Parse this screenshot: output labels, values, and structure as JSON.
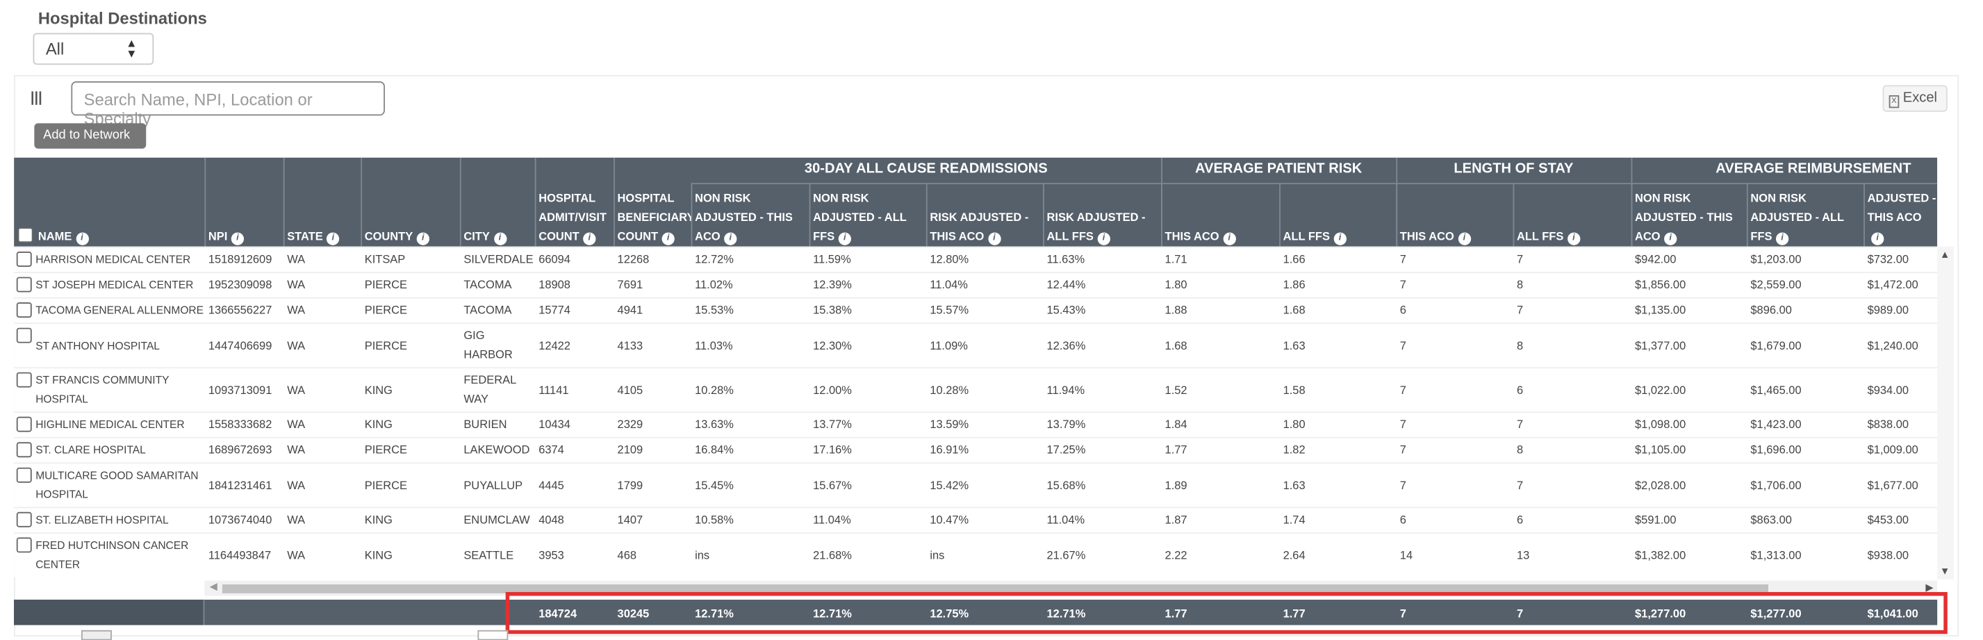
{
  "filter": {
    "label": "Hospital Destinations",
    "value": "All"
  },
  "toolbar": {
    "columns_icon": "columns-icon",
    "search_placeholder": "Search Name, NPI, Location or Specialty",
    "excel_label": "Excel",
    "add_to_network_label": "Add to Network"
  },
  "groups": [
    "30-DAY ALL CAUSE READMISSIONS",
    "AVERAGE PATIENT RISK",
    "LENGTH OF STAY",
    "AVERAGE REIMBURSEMENT"
  ],
  "headers": [
    {
      "label": "NAME",
      "info": true,
      "checkbox": true
    },
    {
      "label": "NPI",
      "info": true
    },
    {
      "label": "STATE",
      "info": true
    },
    {
      "label": "COUNTY",
      "info": true
    },
    {
      "label": "CITY",
      "info": true
    },
    {
      "label": "HOSPITAL ADMIT/VISIT COUNT",
      "info": true
    },
    {
      "label": "HOSPITAL BENEFICIARY COUNT",
      "info": true
    },
    {
      "label": "NON RISK ADJUSTED - THIS ACO",
      "info": true
    },
    {
      "label": "NON RISK ADJUSTED - ALL FFS",
      "info": true
    },
    {
      "label": "RISK ADJUSTED - THIS ACO",
      "info": true
    },
    {
      "label": "RISK ADJUSTED - ALL FFS",
      "info": true
    },
    {
      "label": "THIS ACO",
      "info": true
    },
    {
      "label": "ALL FFS",
      "info": true
    },
    {
      "label": "THIS ACO",
      "info": true
    },
    {
      "label": "ALL FFS",
      "info": true
    },
    {
      "label": "NON RISK ADJUSTED - THIS ACO",
      "info": true
    },
    {
      "label": "NON RISK ADJUSTED - ALL FFS",
      "info": true
    },
    {
      "label": "RISK ADJUSTED - THIS ACO",
      "info": true
    }
  ],
  "rows": [
    [
      "HARRISON MEDICAL CENTER",
      "1518912609",
      "WA",
      "KITSAP",
      "SILVERDALE",
      "66094",
      "12268",
      "12.72%",
      "11.59%",
      "12.80%",
      "11.63%",
      "1.71",
      "1.66",
      "7",
      "7",
      "$942.00",
      "$1,203.00",
      "$732.00"
    ],
    [
      "ST JOSEPH MEDICAL CENTER",
      "1952309098",
      "WA",
      "PIERCE",
      "TACOMA",
      "18908",
      "7691",
      "11.02%",
      "12.39%",
      "11.04%",
      "12.44%",
      "1.80",
      "1.86",
      "7",
      "8",
      "$1,856.00",
      "$2,559.00",
      "$1,472.00"
    ],
    [
      "TACOMA GENERAL ALLENMORE",
      "1366556227",
      "WA",
      "PIERCE",
      "TACOMA",
      "15774",
      "4941",
      "15.53%",
      "15.38%",
      "15.57%",
      "15.43%",
      "1.88",
      "1.68",
      "6",
      "7",
      "$1,135.00",
      "$896.00",
      "$989.00"
    ],
    [
      "ST ANTHONY HOSPITAL",
      "1447406699",
      "WA",
      "PIERCE",
      "GIG HARBOR",
      "12422",
      "4133",
      "11.03%",
      "12.30%",
      "11.09%",
      "12.36%",
      "1.68",
      "1.63",
      "7",
      "8",
      "$1,377.00",
      "$1,679.00",
      "$1,240.00"
    ],
    [
      "ST FRANCIS COMMUNITY HOSPITAL",
      "1093713091",
      "WA",
      "KING",
      "FEDERAL WAY",
      "11141",
      "4105",
      "10.28%",
      "12.00%",
      "10.28%",
      "11.94%",
      "1.52",
      "1.58",
      "7",
      "6",
      "$1,022.00",
      "$1,465.00",
      "$934.00"
    ],
    [
      "HIGHLINE MEDICAL CENTER",
      "1558333682",
      "WA",
      "KING",
      "BURIEN",
      "10434",
      "2329",
      "13.63%",
      "13.77%",
      "13.59%",
      "13.79%",
      "1.84",
      "1.80",
      "7",
      "7",
      "$1,098.00",
      "$1,423.00",
      "$838.00"
    ],
    [
      "ST. CLARE HOSPITAL",
      "1689672693",
      "WA",
      "PIERCE",
      "LAKEWOOD",
      "6374",
      "2109",
      "16.84%",
      "17.16%",
      "16.91%",
      "17.25%",
      "1.77",
      "1.82",
      "7",
      "8",
      "$1,105.00",
      "$1,696.00",
      "$1,009.00"
    ],
    [
      "MULTICARE GOOD SAMARITAN HOSPITAL",
      "1841231461",
      "WA",
      "PIERCE",
      "PUYALLUP",
      "4445",
      "1799",
      "15.45%",
      "15.67%",
      "15.42%",
      "15.68%",
      "1.89",
      "1.63",
      "7",
      "7",
      "$2,028.00",
      "$1,706.00",
      "$1,677.00"
    ],
    [
      "ST. ELIZABETH HOSPITAL",
      "1073674040",
      "WA",
      "KING",
      "ENUMCLAW",
      "4048",
      "1407",
      "10.58%",
      "11.04%",
      "10.47%",
      "11.04%",
      "1.87",
      "1.74",
      "6",
      "6",
      "$591.00",
      "$863.00",
      "$453.00"
    ],
    [
      "FRED HUTCHINSON CANCER CENTER",
      "1164493847",
      "WA",
      "KING",
      "SEATTLE",
      "3953",
      "468",
      "ins",
      "21.68%",
      "ins",
      "21.67%",
      "2.22",
      "2.64",
      "14",
      "13",
      "$1,382.00",
      "$1,313.00",
      "$938.00"
    ]
  ],
  "totals": [
    "184724",
    "30245",
    "12.71%",
    "12.71%",
    "12.75%",
    "12.71%",
    "1.77",
    "1.77",
    "7",
    "7",
    "$1,277.00",
    "$1,277.00",
    "$1,041.00"
  ]
}
